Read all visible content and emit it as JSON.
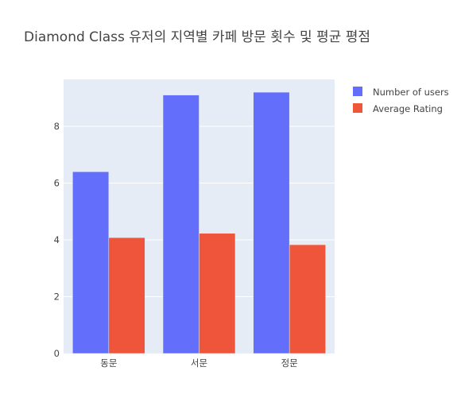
{
  "chart_data": {
    "type": "bar",
    "title": "Diamond Class 유저의 지역별 카페 방문 횟수 및 평균 평점",
    "xlabel": "",
    "ylabel": "",
    "categories": [
      "동문",
      "서문",
      "정문"
    ],
    "series": [
      {
        "name": "Number of users",
        "color": "#636efa",
        "values": [
          6.4,
          9.1,
          9.2
        ]
      },
      {
        "name": "Average Rating",
        "color": "#ef553b",
        "values": [
          4.08,
          4.23,
          3.83
        ]
      }
    ],
    "ylim": [
      0,
      9.65
    ],
    "yticks": [
      0,
      2,
      4,
      6,
      8
    ],
    "grid": true,
    "legend_position": "top-right",
    "plot_background": "#e5ecf6"
  }
}
